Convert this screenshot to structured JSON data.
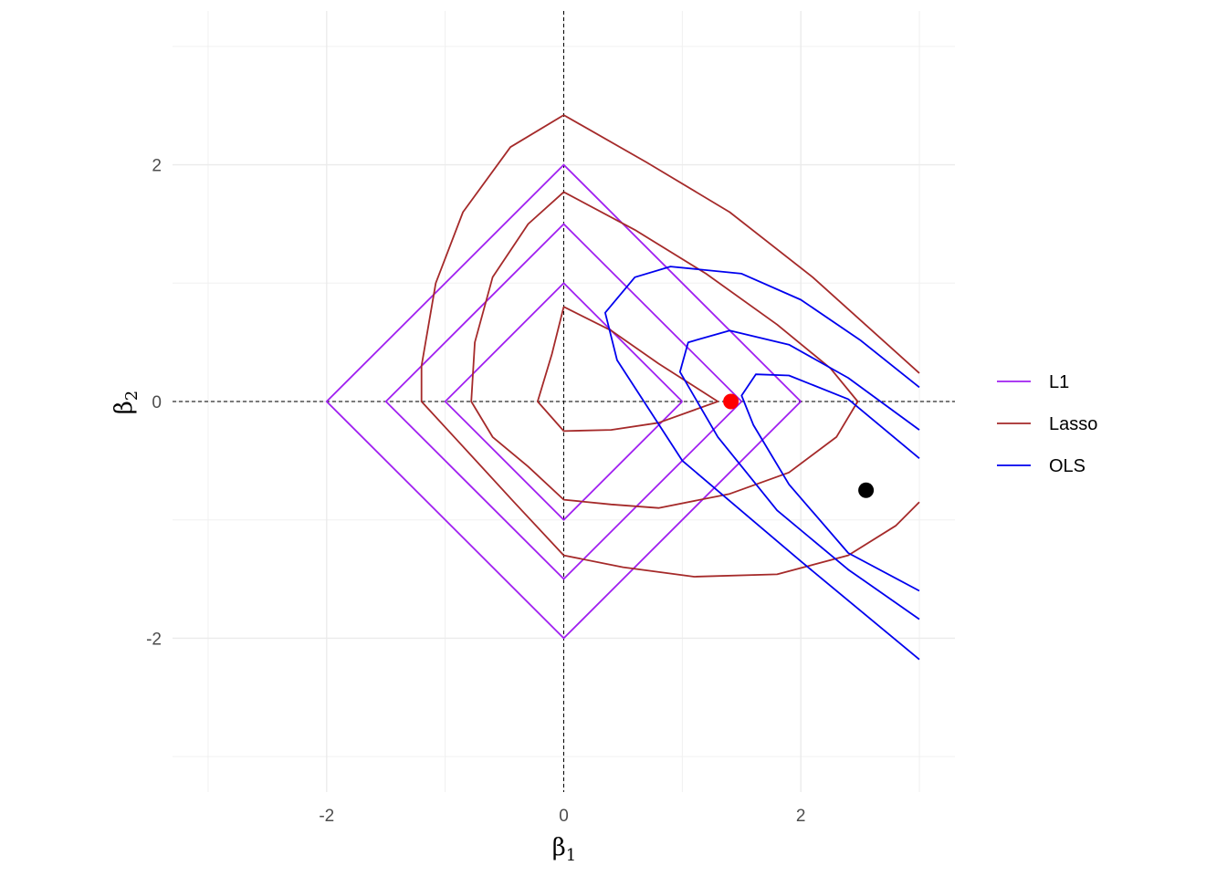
{
  "chart_data": {
    "type": "line",
    "title": "",
    "xlabel": {
      "base": "β",
      "sub": "1"
    },
    "ylabel": {
      "base": "β",
      "sub": "2"
    },
    "xlim": [
      -3.3,
      3.3
    ],
    "ylim": [
      -3.3,
      3.3
    ],
    "xticks": [
      -2,
      0,
      2
    ],
    "yticks": [
      -2,
      0,
      2
    ],
    "xtick_labels": [
      "-2",
      "0",
      "2"
    ],
    "ytick_labels": [
      "-2",
      "0",
      "2"
    ],
    "grid": true,
    "reference_lines": {
      "x": 0,
      "y": 0,
      "style": "dashed"
    },
    "legend": {
      "position": "right",
      "entries": [
        "L1",
        "Lasso",
        "OLS"
      ]
    },
    "series": [
      {
        "name": "L1",
        "color": "#a020f0",
        "contours": [
          [
            [
              2,
              0
            ],
            [
              0,
              2
            ],
            [
              -2,
              0
            ],
            [
              0,
              -2
            ],
            [
              2,
              0
            ]
          ],
          [
            [
              1.5,
              0
            ],
            [
              0,
              1.5
            ],
            [
              -1.5,
              0
            ],
            [
              0,
              -1.5
            ],
            [
              1.5,
              0
            ]
          ],
          [
            [
              1,
              0
            ],
            [
              0,
              1
            ],
            [
              -1,
              0
            ],
            [
              0,
              -1
            ],
            [
              1,
              0
            ]
          ]
        ]
      },
      {
        "name": "Lasso",
        "color": "#a52a2a",
        "contours": [
          [
            [
              0,
              2.42
            ],
            [
              0.7,
              2.02
            ],
            [
              1.4,
              1.6
            ],
            [
              2.1,
              1.05
            ],
            [
              3.0,
              0.24
            ]
          ],
          [
            [
              0,
              2.42
            ],
            [
              -0.45,
              2.15
            ],
            [
              -0.85,
              1.6
            ],
            [
              -1.08,
              1.0
            ],
            [
              -1.2,
              0.3
            ],
            [
              -1.2,
              0
            ],
            [
              -0.85,
              -0.38
            ],
            [
              -0.42,
              -0.85
            ],
            [
              0,
              -1.3
            ],
            [
              0.5,
              -1.4
            ],
            [
              1.1,
              -1.48
            ],
            [
              1.8,
              -1.46
            ],
            [
              2.4,
              -1.3
            ],
            [
              2.8,
              -1.05
            ],
            [
              3.0,
              -0.85
            ]
          ],
          [
            [
              0,
              1.77
            ],
            [
              0.6,
              1.45
            ],
            [
              1.2,
              1.08
            ],
            [
              1.8,
              0.65
            ],
            [
              2.25,
              0.28
            ],
            [
              2.48,
              0
            ],
            [
              2.3,
              -0.3
            ],
            [
              1.9,
              -0.6
            ],
            [
              1.4,
              -0.78
            ],
            [
              0.8,
              -0.9
            ],
            [
              0.4,
              -0.87
            ],
            [
              0,
              -0.83
            ],
            [
              -0.3,
              -0.55
            ],
            [
              -0.6,
              -0.3
            ],
            [
              -0.78,
              0
            ],
            [
              -0.75,
              0.5
            ],
            [
              -0.6,
              1.05
            ],
            [
              -0.3,
              1.5
            ],
            [
              0,
              1.77
            ]
          ],
          [
            [
              0,
              0.8
            ],
            [
              0.4,
              0.6
            ],
            [
              0.8,
              0.32
            ],
            [
              1.3,
              0
            ],
            [
              0.8,
              -0.18
            ],
            [
              0.4,
              -0.24
            ],
            [
              0,
              -0.25
            ],
            [
              -0.22,
              0
            ],
            [
              -0.1,
              0.4
            ],
            [
              0,
              0.8
            ]
          ]
        ]
      },
      {
        "name": "OLS",
        "color": "#0000ee",
        "contours": [
          [
            [
              3.0,
              -2.18
            ],
            [
              2.0,
              -1.35
            ],
            [
              1.0,
              -0.5
            ],
            [
              0.45,
              0.35
            ],
            [
              0.35,
              0.75
            ],
            [
              0.6,
              1.05
            ],
            [
              0.9,
              1.14
            ],
            [
              1.5,
              1.08
            ],
            [
              2.0,
              0.86
            ],
            [
              2.5,
              0.52
            ],
            [
              3.0,
              0.12
            ]
          ],
          [
            [
              3.0,
              -1.84
            ],
            [
              2.4,
              -1.42
            ],
            [
              1.8,
              -0.92
            ],
            [
              1.3,
              -0.3
            ],
            [
              0.98,
              0.25
            ],
            [
              1.05,
              0.5
            ],
            [
              1.4,
              0.6
            ],
            [
              1.9,
              0.48
            ],
            [
              2.4,
              0.2
            ],
            [
              3.0,
              -0.24
            ]
          ],
          [
            [
              3.0,
              -1.6
            ],
            [
              2.4,
              -1.28
            ],
            [
              1.9,
              -0.7
            ],
            [
              1.6,
              -0.2
            ],
            [
              1.5,
              0.05
            ],
            [
              1.62,
              0.23
            ],
            [
              1.9,
              0.22
            ],
            [
              2.4,
              0.02
            ],
            [
              3.0,
              -0.48
            ]
          ]
        ]
      }
    ],
    "points": [
      {
        "x": 1.41,
        "y": 0,
        "color": "#ff0000"
      },
      {
        "x": 2.55,
        "y": -0.75,
        "color": "#000000"
      }
    ]
  }
}
